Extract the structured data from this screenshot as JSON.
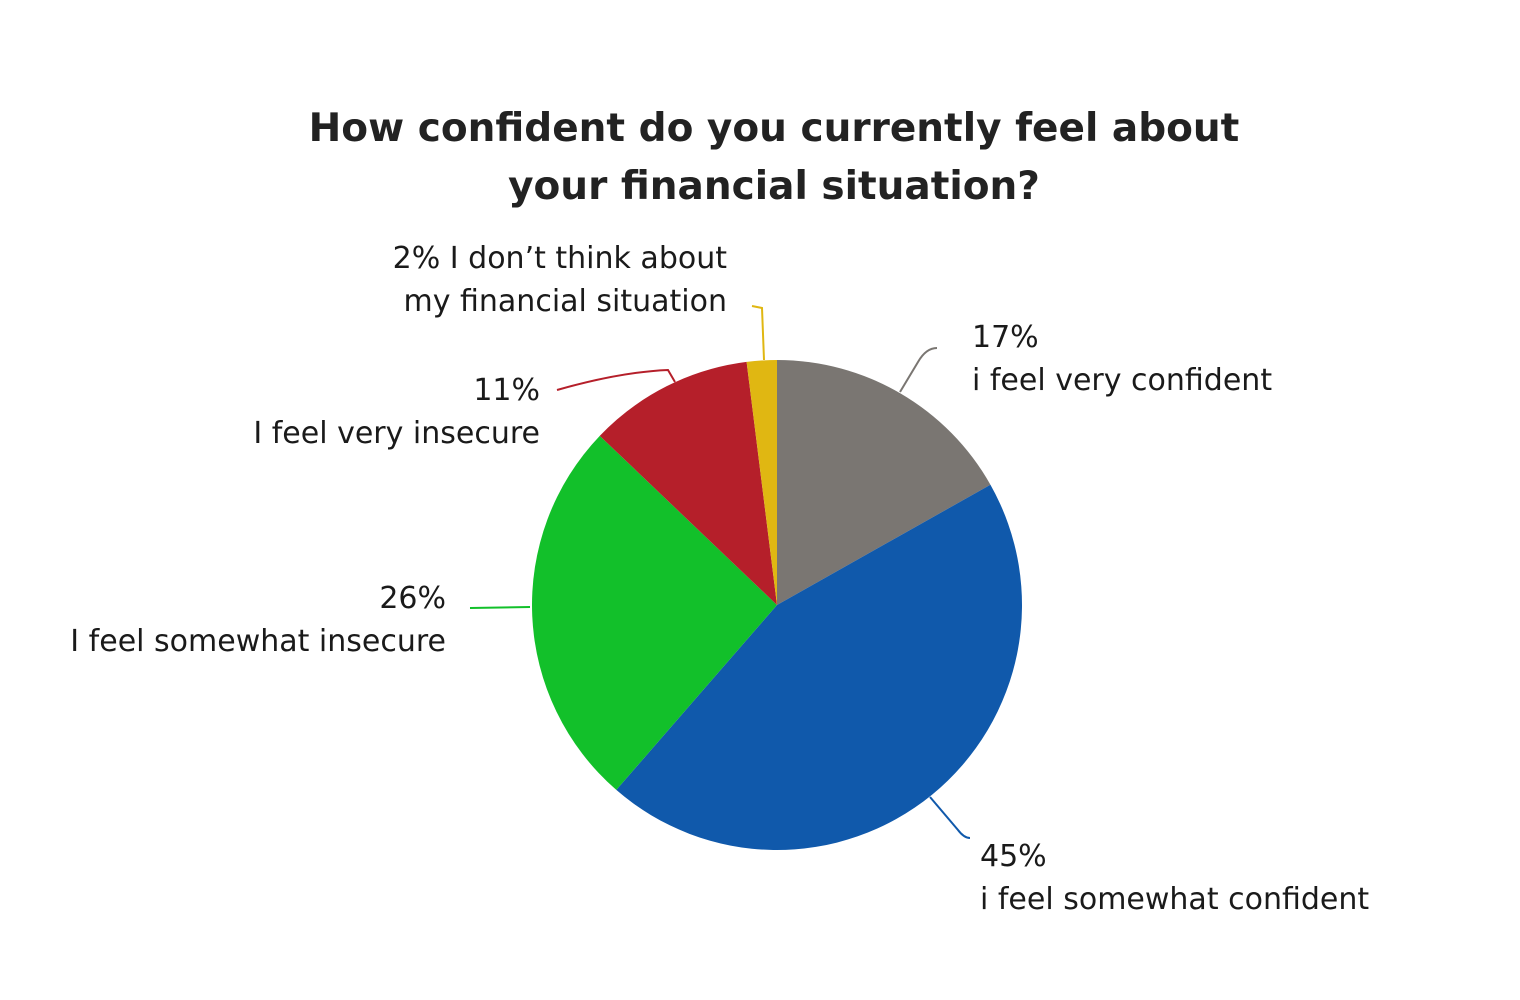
{
  "chart_data": {
    "type": "pie",
    "title_line1": "How confident do you currently feel about",
    "title_line2": "your financial situation?",
    "slices": [
      {
        "pct_label": "17%",
        "label": "i feel very confident",
        "value": 17,
        "color": "#7a7672"
      },
      {
        "pct_label": "45%",
        "label": "i feel somewhat confident",
        "value": 45,
        "color": "#1059ab"
      },
      {
        "pct_label": "26%",
        "label": "I feel somewhat insecure",
        "value": 26,
        "color": "#12c02a"
      },
      {
        "pct_label": "11%",
        "label": "I feel very insecure",
        "value": 11,
        "color": "#b51f2a"
      },
      {
        "pct_label": "2% I don’t think about",
        "label": "my financial situation",
        "value": 2,
        "color": "#e0b712"
      }
    ],
    "start": "top",
    "direction": "clockwise",
    "legend": "none"
  }
}
